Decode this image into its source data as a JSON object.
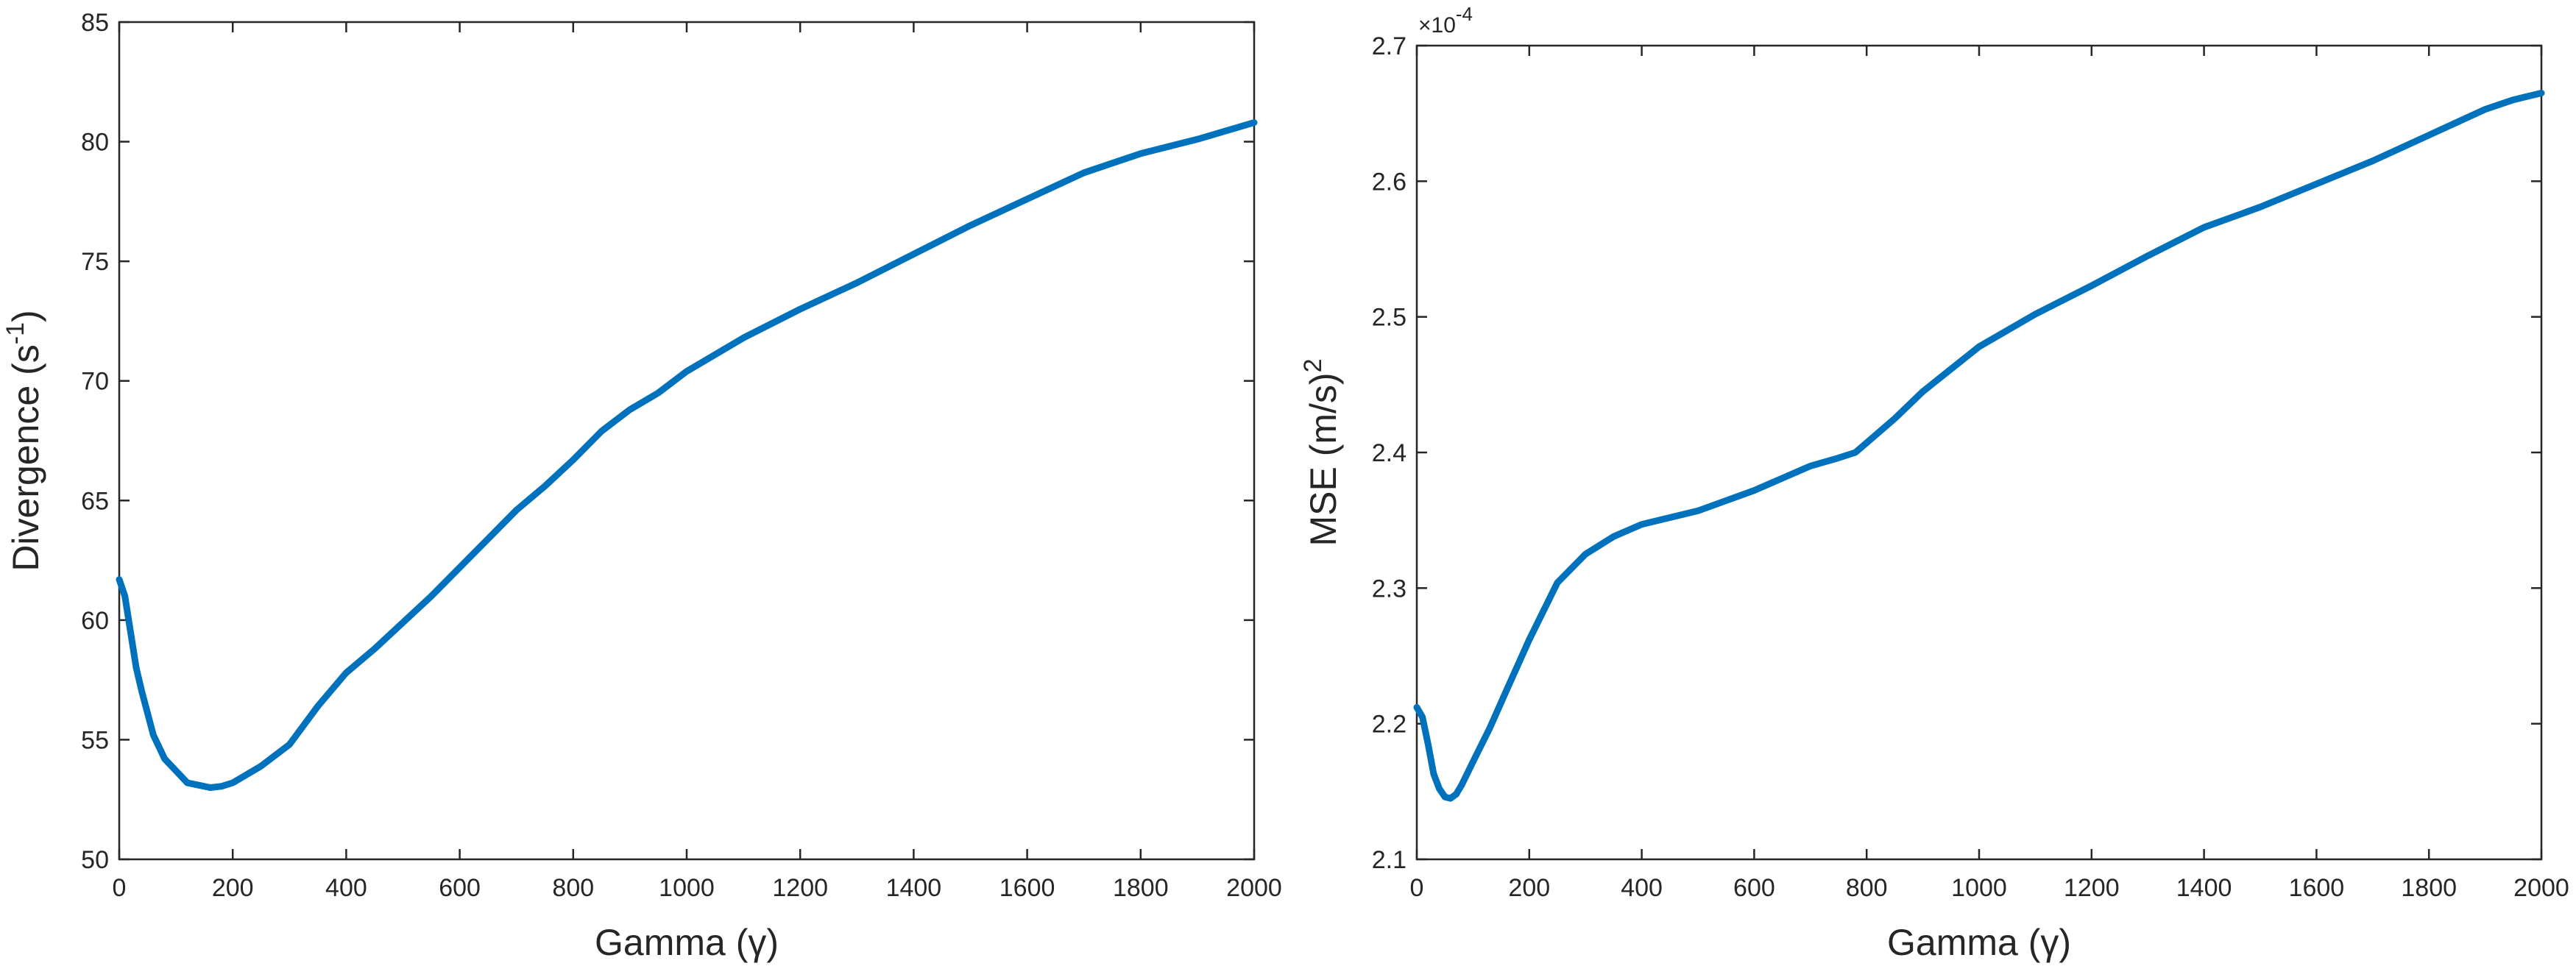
{
  "chart_data": [
    {
      "type": "line",
      "xlabel": "Gamma (γ)",
      "ylabel_main": "Divergence (s",
      "ylabel_sup": "-1",
      "ylabel_tail": ")",
      "xlim": [
        0,
        2000
      ],
      "ylim": [
        50,
        85
      ],
      "xticks": [
        0,
        200,
        400,
        600,
        800,
        1000,
        1200,
        1400,
        1600,
        1800,
        2000
      ],
      "xtick_labels": [
        "0",
        "200",
        "400",
        "600",
        "800",
        "1000",
        "1200",
        "1400",
        "1600",
        "1800",
        "2000"
      ],
      "yticks": [
        50,
        55,
        60,
        65,
        70,
        75,
        80,
        85
      ],
      "ytick_labels": [
        "50",
        "55",
        "60",
        "65",
        "70",
        "75",
        "80",
        "85"
      ],
      "grid": false,
      "color": "#0072BD",
      "series": [
        {
          "x": [
            0,
            10,
            20,
            30,
            40,
            60,
            80,
            100,
            120,
            140,
            160,
            180,
            200,
            250,
            300,
            350,
            400,
            450,
            500,
            550,
            600,
            650,
            700,
            750,
            800,
            850,
            900,
            950,
            1000,
            1100,
            1200,
            1300,
            1400,
            1500,
            1600,
            1700,
            1800,
            1900,
            2000
          ],
          "values": [
            61.7,
            61.0,
            59.5,
            58.0,
            57.0,
            55.2,
            54.2,
            53.7,
            53.2,
            53.1,
            53.0,
            53.05,
            53.2,
            53.9,
            54.8,
            56.4,
            57.8,
            58.8,
            59.9,
            61.0,
            62.2,
            63.4,
            64.6,
            65.6,
            66.7,
            67.9,
            68.8,
            69.5,
            70.4,
            71.8,
            73.0,
            74.1,
            75.3,
            76.5,
            77.6,
            78.7,
            79.5,
            80.1,
            80.8
          ]
        }
      ]
    },
    {
      "type": "line",
      "xlabel": "Gamma (γ)",
      "ylabel_main": "MSE (m/s)",
      "ylabel_sup": "2",
      "ylabel_tail": "",
      "exponent_base": "×10",
      "exponent_power": "-4",
      "xlim": [
        0,
        2000
      ],
      "ylim": [
        2.1,
        2.7
      ],
      "xticks": [
        0,
        200,
        400,
        600,
        800,
        1000,
        1200,
        1400,
        1600,
        1800,
        2000
      ],
      "xtick_labels": [
        "0",
        "200",
        "400",
        "600",
        "800",
        "1000",
        "1200",
        "1400",
        "1600",
        "1800",
        "2000"
      ],
      "yticks": [
        2.1,
        2.2,
        2.3,
        2.4,
        2.5,
        2.6,
        2.7
      ],
      "ytick_labels": [
        "2.1",
        "2.2",
        "2.3",
        "2.4",
        "2.5",
        "2.6",
        "2.7"
      ],
      "grid": false,
      "color": "#0072BD",
      "series": [
        {
          "x": [
            0,
            10,
            20,
            30,
            40,
            50,
            60,
            70,
            80,
            100,
            130,
            160,
            200,
            250,
            300,
            350,
            400,
            450,
            500,
            600,
            700,
            750,
            780,
            850,
            900,
            1000,
            1100,
            1200,
            1300,
            1400,
            1500,
            1600,
            1700,
            1800,
            1900,
            1950,
            2000
          ],
          "values": [
            2.212,
            2.205,
            2.185,
            2.163,
            2.152,
            2.146,
            2.145,
            2.148,
            2.155,
            2.172,
            2.197,
            2.225,
            2.262,
            2.304,
            2.325,
            2.338,
            2.347,
            2.352,
            2.357,
            2.372,
            2.39,
            2.396,
            2.4,
            2.425,
            2.445,
            2.478,
            2.502,
            2.523,
            2.545,
            2.566,
            2.581,
            2.598,
            2.615,
            2.634,
            2.653,
            2.66,
            2.665
          ]
        }
      ]
    }
  ]
}
